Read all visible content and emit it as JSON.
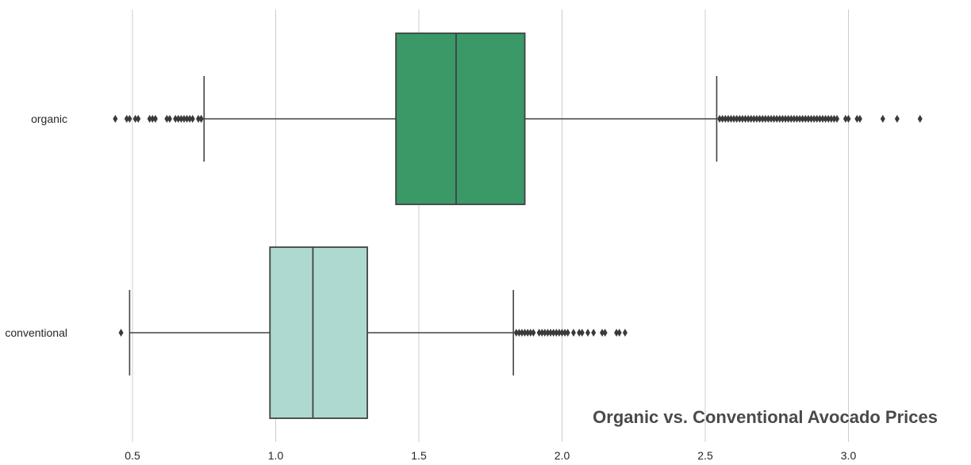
{
  "chart_data": {
    "type": "boxplot",
    "orientation": "horizontal",
    "title": "Organic vs. Conventional Avocado Prices",
    "xlabel": "",
    "ylabel": "",
    "xlim": [
      0.39,
      3.3
    ],
    "xticks": [
      "0.5",
      "1.0",
      "1.5",
      "2.0",
      "2.5",
      "3.0"
    ],
    "xtick_values": [
      0.5,
      1.0,
      1.5,
      2.0,
      2.5,
      3.0
    ],
    "grid": "vertical",
    "categories": [
      "organic",
      "conventional"
    ],
    "series": [
      {
        "name": "organic",
        "color": "#3a9966",
        "whisker_low": 0.75,
        "q1": 1.42,
        "median": 1.63,
        "q3": 1.87,
        "whisker_high": 2.54,
        "outliers": [
          0.44,
          0.48,
          0.49,
          0.51,
          0.52,
          0.56,
          0.57,
          0.58,
          0.62,
          0.63,
          0.65,
          0.66,
          0.67,
          0.68,
          0.69,
          0.7,
          0.71,
          0.73,
          0.74,
          0.74,
          2.55,
          2.56,
          2.57,
          2.58,
          2.59,
          2.6,
          2.61,
          2.62,
          2.63,
          2.64,
          2.65,
          2.66,
          2.67,
          2.68,
          2.69,
          2.7,
          2.71,
          2.72,
          2.73,
          2.74,
          2.75,
          2.76,
          2.77,
          2.78,
          2.79,
          2.8,
          2.81,
          2.82,
          2.83,
          2.84,
          2.85,
          2.86,
          2.87,
          2.88,
          2.89,
          2.9,
          2.91,
          2.92,
          2.93,
          2.94,
          2.95,
          2.96,
          2.99,
          3.0,
          3.03,
          3.04,
          3.12,
          3.17,
          3.25
        ]
      },
      {
        "name": "conventional",
        "color": "#aed9d0",
        "whisker_low": 0.49,
        "q1": 0.98,
        "median": 1.13,
        "q3": 1.32,
        "whisker_high": 1.83,
        "outliers": [
          0.46,
          1.84,
          1.85,
          1.86,
          1.87,
          1.88,
          1.89,
          1.9,
          1.92,
          1.93,
          1.94,
          1.95,
          1.96,
          1.97,
          1.98,
          1.99,
          2.0,
          2.01,
          2.02,
          2.04,
          2.06,
          2.07,
          2.09,
          2.11,
          2.14,
          2.15,
          2.19,
          2.2,
          2.22
        ]
      }
    ]
  }
}
